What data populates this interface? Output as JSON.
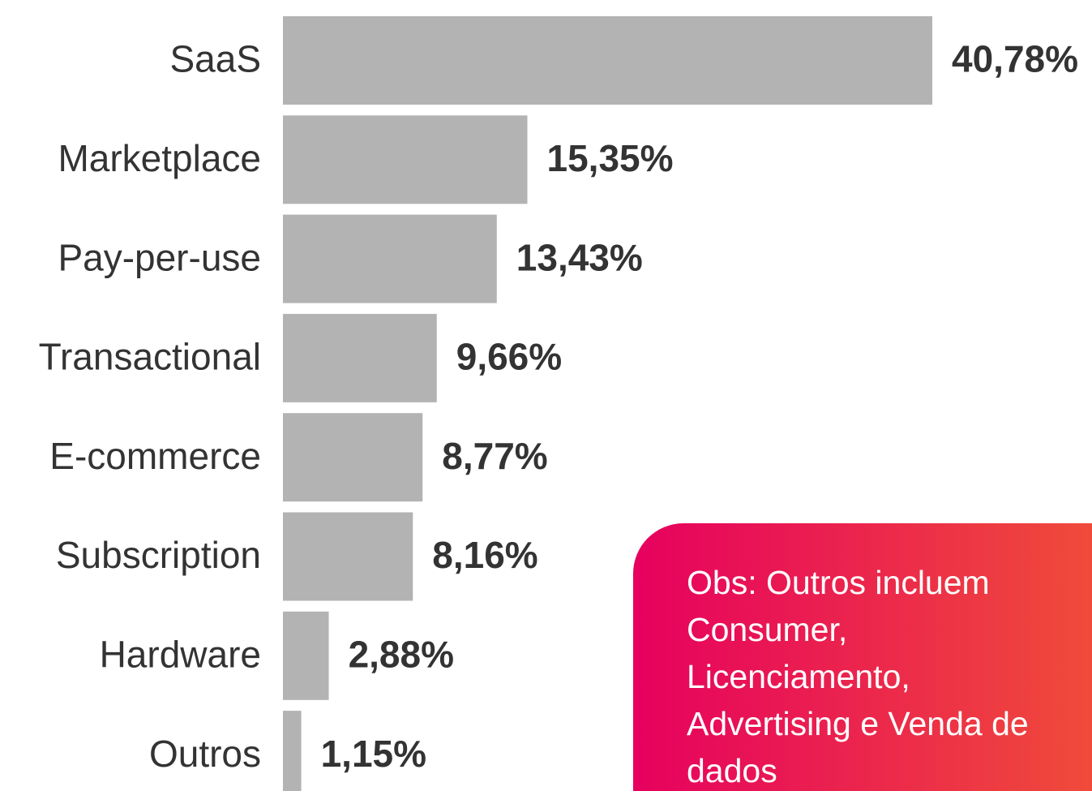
{
  "chart_data": {
    "type": "bar",
    "orientation": "horizontal",
    "categories": [
      "SaaS",
      "Marketplace",
      "Pay-per-use",
      "Transactional",
      "E-commerce",
      "Subscription",
      "Hardware",
      "Outros"
    ],
    "values": [
      40.78,
      15.35,
      13.43,
      9.66,
      8.77,
      8.16,
      2.88,
      1.15
    ],
    "value_labels": [
      "40,78%",
      "15,35%",
      "13,43%",
      "9,66%",
      "8,77%",
      "8,16%",
      "2,88%",
      "1,15%"
    ],
    "color": "#b3b3b3",
    "annotation": "Obs: Outros incluem Consumer, Licenciamento, Advertising e Venda de dados"
  }
}
